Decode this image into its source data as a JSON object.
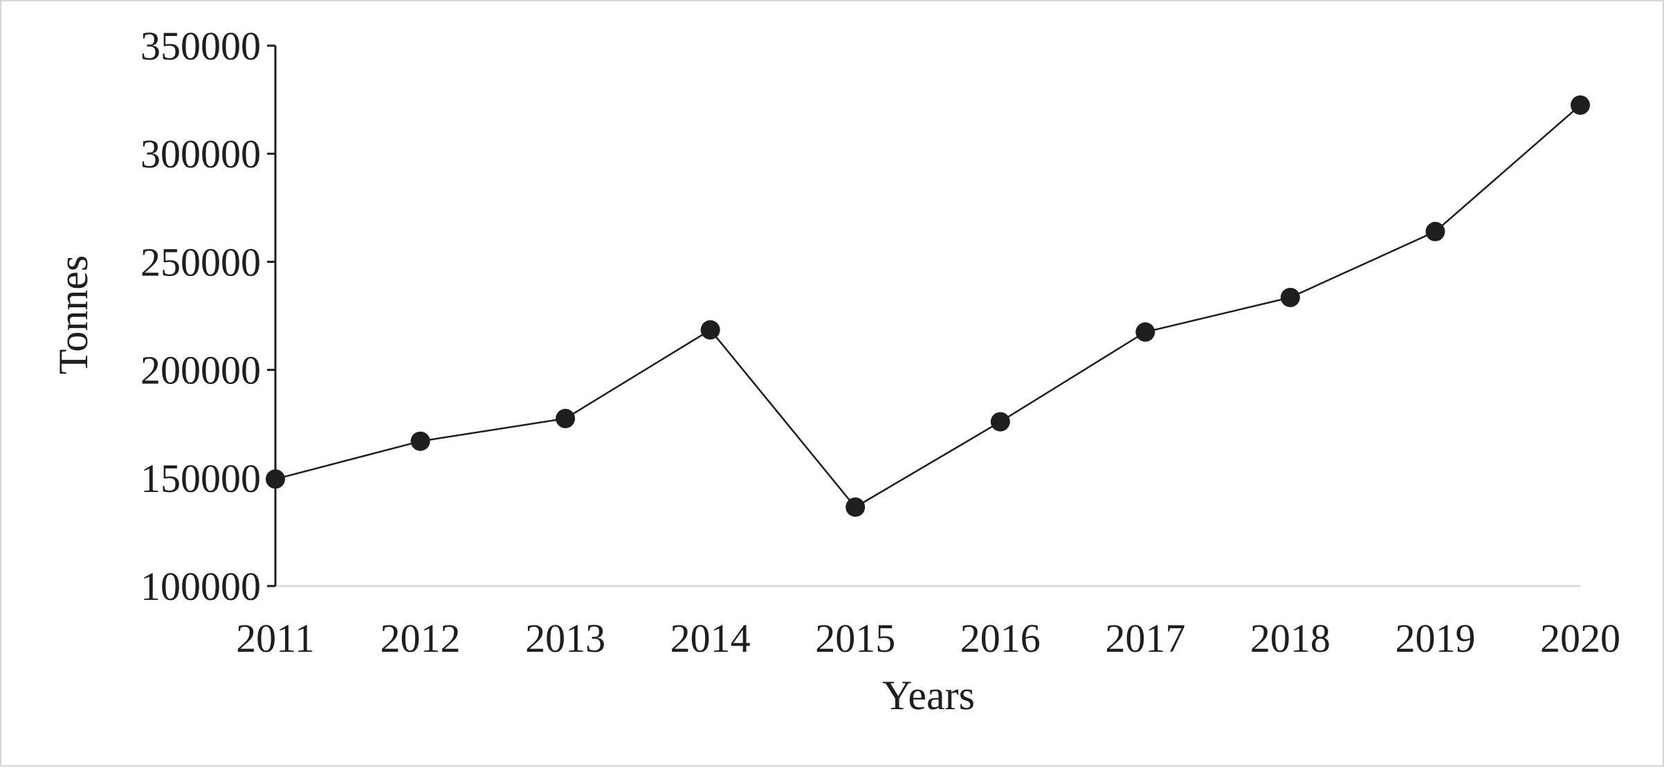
{
  "chart_data": {
    "type": "line",
    "title": "",
    "xlabel": "Years",
    "ylabel": "Tonnes",
    "categories": [
      "2011",
      "2012",
      "2013",
      "2014",
      "2015",
      "2016",
      "2017",
      "2018",
      "2019",
      "2020"
    ],
    "series": [
      {
        "values": [
          149500,
          167000,
          177500,
          218500,
          136500,
          176000,
          217500,
          233500,
          264000,
          322500
        ]
      }
    ],
    "ylim": [
      100000,
      350000
    ],
    "yticks": [
      "350000",
      "300000",
      "250000",
      "200000",
      "150000",
      "100000"
    ],
    "grid": false,
    "legend": "none",
    "colors": {
      "line": "#1e1e1e",
      "marker": "#1e1e1e",
      "x_axis": "#d9d9d9",
      "y_axis": "#1e1e1e"
    }
  }
}
